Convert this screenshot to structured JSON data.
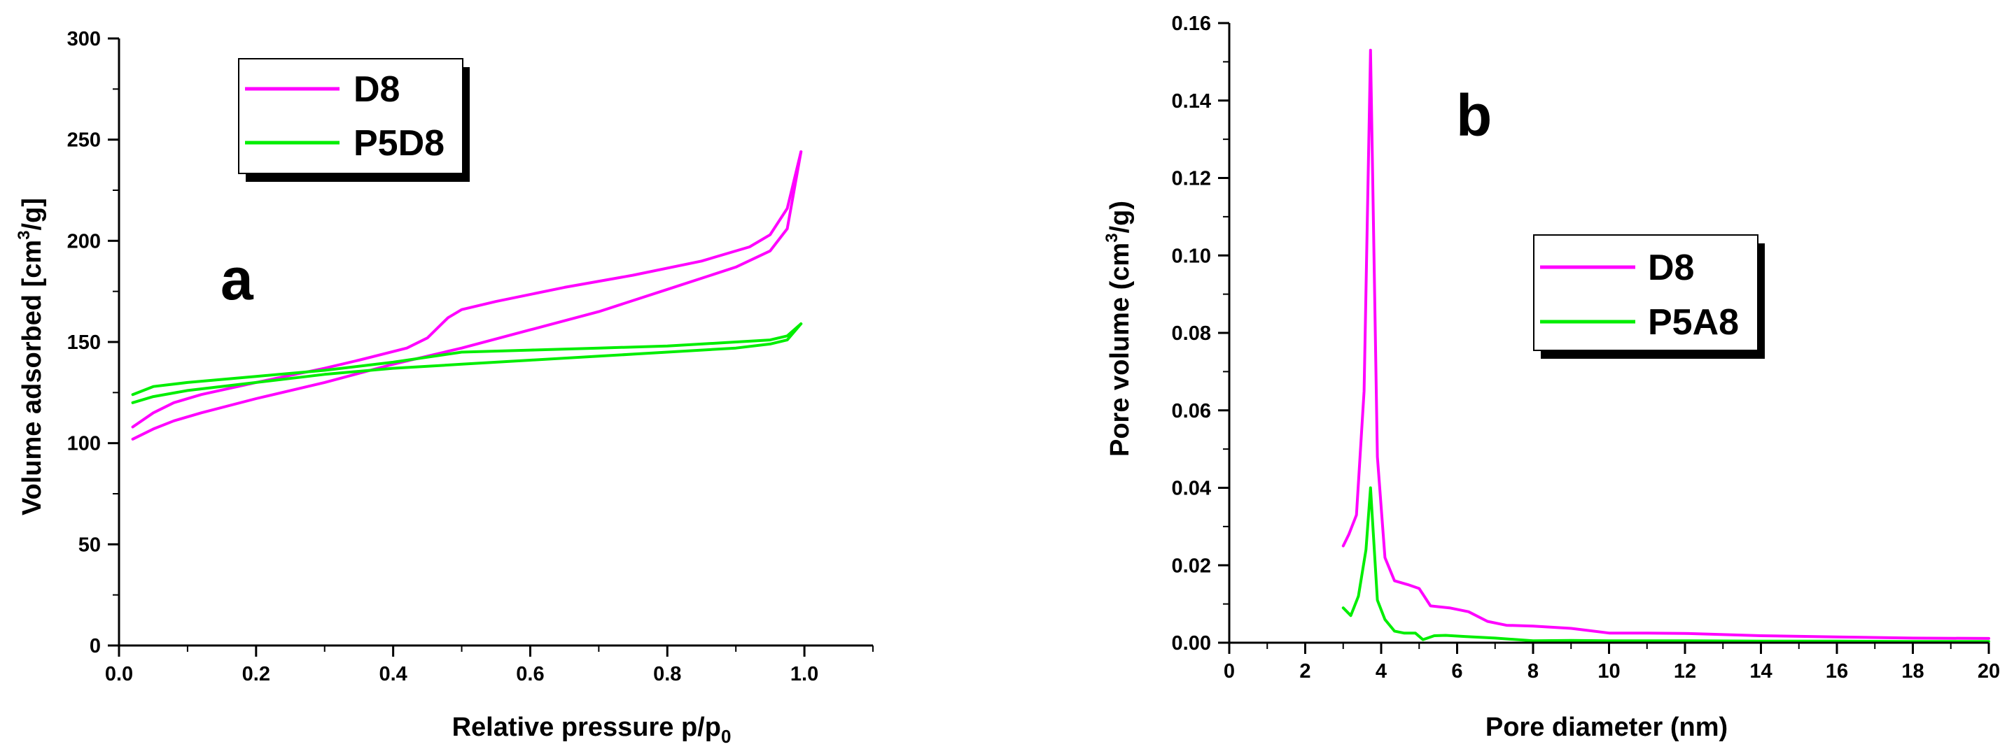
{
  "chart_data": [
    {
      "panel": "a",
      "type": "line",
      "xlabel_main": "Relative pressure p/p",
      "xlabel_sub": "0",
      "ylabel_pre": "Volume adsorbed [cm",
      "ylabel_sup": "3",
      "ylabel_post": "/g]",
      "xlim": [
        0.0,
        1.1
      ],
      "ylim": [
        0,
        300
      ],
      "xticks": [
        0.0,
        0.2,
        0.4,
        0.6,
        0.8,
        1.0
      ],
      "xtick_labels": [
        "0.0",
        "0.2",
        "0.4",
        "0.6",
        "0.8",
        "1.0"
      ],
      "yticks": [
        0,
        50,
        100,
        150,
        200,
        250,
        300
      ],
      "ytick_labels": [
        "0",
        "50",
        "100",
        "150",
        "200",
        "250",
        "300"
      ],
      "legend": [
        "D8",
        "P5D8"
      ],
      "legend_position": "top-left",
      "series": [
        {
          "name": "D8",
          "color": "#ff00ff",
          "branches": [
            [
              [
                0.02,
                102
              ],
              [
                0.05,
                107
              ],
              [
                0.08,
                111
              ],
              [
                0.12,
                115
              ],
              [
                0.2,
                122
              ],
              [
                0.3,
                130
              ],
              [
                0.4,
                139
              ],
              [
                0.5,
                147
              ],
              [
                0.6,
                156
              ],
              [
                0.7,
                165
              ],
              [
                0.8,
                176
              ],
              [
                0.9,
                187
              ],
              [
                0.95,
                195
              ],
              [
                0.975,
                206
              ],
              [
                0.995,
                244
              ]
            ],
            [
              [
                0.995,
                244
              ],
              [
                0.975,
                216
              ],
              [
                0.95,
                203
              ],
              [
                0.92,
                197
              ],
              [
                0.85,
                190
              ],
              [
                0.75,
                183
              ],
              [
                0.65,
                177
              ],
              [
                0.55,
                170
              ],
              [
                0.5,
                166
              ],
              [
                0.48,
                162
              ],
              [
                0.45,
                152
              ],
              [
                0.42,
                147
              ],
              [
                0.35,
                141
              ],
              [
                0.3,
                137
              ],
              [
                0.2,
                130
              ],
              [
                0.12,
                124
              ],
              [
                0.08,
                120
              ],
              [
                0.05,
                115
              ],
              [
                0.02,
                108
              ]
            ]
          ]
        },
        {
          "name": "P5D8",
          "color": "#00ee00",
          "branches": [
            [
              [
                0.02,
                120
              ],
              [
                0.05,
                123
              ],
              [
                0.1,
                126
              ],
              [
                0.2,
                130
              ],
              [
                0.3,
                134
              ],
              [
                0.4,
                137
              ],
              [
                0.5,
                139
              ],
              [
                0.6,
                141
              ],
              [
                0.7,
                143
              ],
              [
                0.8,
                145
              ],
              [
                0.9,
                147
              ],
              [
                0.95,
                149
              ],
              [
                0.975,
                151
              ],
              [
                0.995,
                159
              ]
            ],
            [
              [
                0.995,
                159
              ],
              [
                0.975,
                153
              ],
              [
                0.95,
                151
              ],
              [
                0.9,
                150
              ],
              [
                0.8,
                148
              ],
              [
                0.7,
                147
              ],
              [
                0.6,
                146
              ],
              [
                0.5,
                145
              ],
              [
                0.4,
                140
              ],
              [
                0.3,
                136
              ],
              [
                0.2,
                133
              ],
              [
                0.1,
                130
              ],
              [
                0.05,
                128
              ],
              [
                0.02,
                124
              ]
            ]
          ]
        }
      ]
    },
    {
      "panel": "b",
      "type": "line",
      "xlabel": "Pore diameter (nm)",
      "ylabel_pre": "Pore volume (cm",
      "ylabel_sup": "3",
      "ylabel_post": "/g)",
      "xlim": [
        0,
        20
      ],
      "ylim": [
        0,
        0.16
      ],
      "xticks": [
        0,
        2,
        4,
        6,
        8,
        10,
        12,
        14,
        16,
        18,
        20
      ],
      "xtick_labels": [
        "0",
        "2",
        "4",
        "6",
        "8",
        "10",
        "12",
        "14",
        "16",
        "18",
        "20"
      ],
      "yticks": [
        0,
        0.02,
        0.04,
        0.06,
        0.08,
        0.1,
        0.12,
        0.14,
        0.16
      ],
      "ytick_labels": [
        "0.00",
        "0.02",
        "0.04",
        "0.06",
        "0.08",
        "0.10",
        "0.12",
        "0.14",
        "0.16"
      ],
      "legend": [
        "D8",
        "P5A8"
      ],
      "legend_position": "center-right",
      "series": [
        {
          "name": "D8",
          "color": "#ff00ff",
          "branches": [
            [
              [
                3.0,
                0.025
              ],
              [
                3.15,
                0.028
              ],
              [
                3.35,
                0.033
              ],
              [
                3.55,
                0.065
              ],
              [
                3.72,
                0.153
              ],
              [
                3.9,
                0.048
              ],
              [
                4.1,
                0.022
              ],
              [
                4.35,
                0.016
              ],
              [
                4.7,
                0.015
              ],
              [
                5.0,
                0.014
              ],
              [
                5.3,
                0.0095
              ],
              [
                5.8,
                0.009
              ],
              [
                6.3,
                0.008
              ],
              [
                6.8,
                0.0055
              ],
              [
                7.3,
                0.0045
              ],
              [
                8.0,
                0.0043
              ],
              [
                9.0,
                0.0037
              ],
              [
                10.0,
                0.0025
              ],
              [
                11.0,
                0.0025
              ],
              [
                12.0,
                0.0024
              ],
              [
                14.0,
                0.0018
              ],
              [
                16.0,
                0.0015
              ],
              [
                18.0,
                0.0012
              ],
              [
                20.0,
                0.0011
              ]
            ]
          ]
        },
        {
          "name": "P5A8",
          "color": "#00ee00",
          "branches": [
            [
              [
                3.0,
                0.009
              ],
              [
                3.2,
                0.007
              ],
              [
                3.4,
                0.012
              ],
              [
                3.6,
                0.024
              ],
              [
                3.72,
                0.04
              ],
              [
                3.9,
                0.011
              ],
              [
                4.1,
                0.006
              ],
              [
                4.35,
                0.003
              ],
              [
                4.6,
                0.0025
              ],
              [
                4.9,
                0.0025
              ],
              [
                5.1,
                0.0008
              ],
              [
                5.4,
                0.0018
              ],
              [
                5.7,
                0.0019
              ],
              [
                6.2,
                0.0016
              ],
              [
                7.0,
                0.0012
              ],
              [
                8.0,
                0.0005
              ],
              [
                9.0,
                0.0006
              ],
              [
                10.0,
                0.0005
              ],
              [
                12.0,
                0.0005
              ],
              [
                14.0,
                0.0004
              ],
              [
                16.0,
                0.0004
              ],
              [
                18.0,
                0.0003
              ],
              [
                20.0,
                0.0003
              ]
            ]
          ]
        }
      ]
    }
  ]
}
